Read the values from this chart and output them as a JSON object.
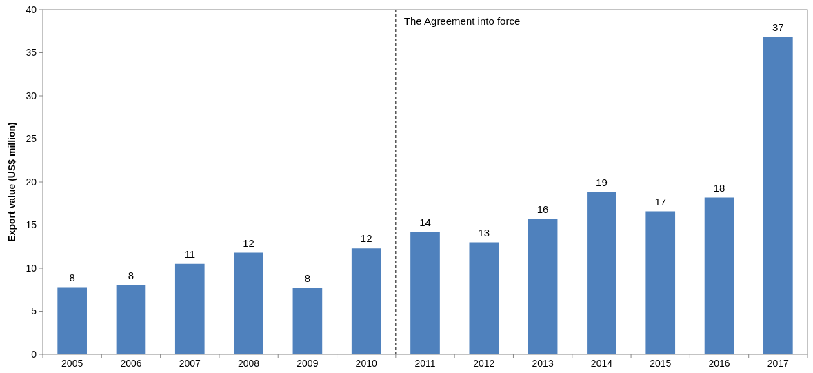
{
  "chart_data": {
    "type": "bar",
    "ylabel": "Export value (US$ million)",
    "x": [
      2005,
      2006,
      2007,
      2008,
      2009,
      2010,
      2011,
      2012,
      2013,
      2014,
      2015,
      2016,
      2017
    ],
    "xlim": [
      2004.5,
      2017.5
    ],
    "xticks": [
      2005,
      2006,
      2007,
      2008,
      2009,
      2010,
      2011,
      2012,
      2013,
      2014,
      2015,
      2016,
      2017
    ],
    "values": [
      7.8,
      8.0,
      10.5,
      11.8,
      7.7,
      12.3,
      14.2,
      13.0,
      15.7,
      18.8,
      16.6,
      18.2,
      36.8
    ],
    "value_labels": [
      "8",
      "8",
      "11",
      "12",
      "8",
      "12",
      "14",
      "13",
      "16",
      "19",
      "17",
      "18",
      "37"
    ],
    "color": "#4f81bd",
    "ylim": [
      0,
      40
    ],
    "yticks": [
      0,
      5,
      10,
      15,
      20,
      25,
      30,
      35,
      40
    ],
    "ref_lines": [
      {
        "axis": "x",
        "value": 2010.5,
        "label": "The Agreement into force",
        "color": "#000000",
        "line_style": "dashed"
      }
    ]
  }
}
